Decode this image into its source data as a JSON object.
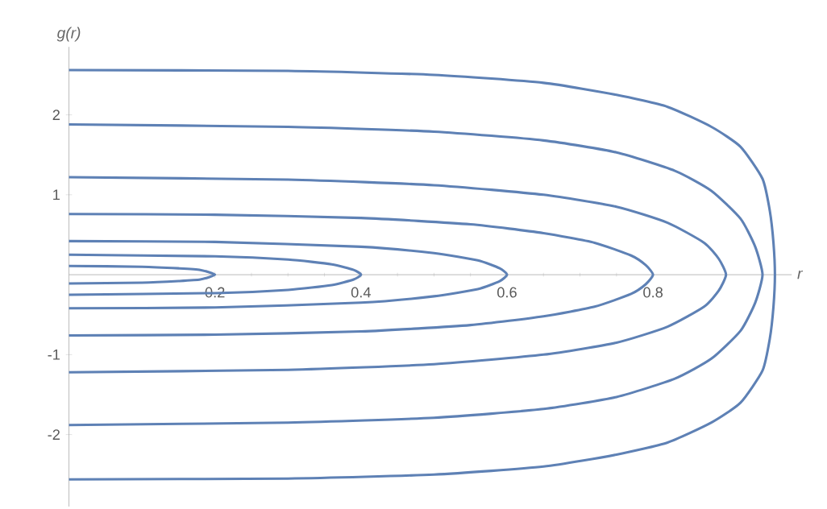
{
  "chart_data": {
    "type": "line",
    "xlabel": "r",
    "ylabel": "g(r)",
    "xlim": [
      0,
      0.99
    ],
    "ylim": [
      -2.9,
      2.85
    ],
    "xticks": [
      0.2,
      0.4,
      0.6,
      0.8
    ],
    "yticks": [
      -2,
      -1,
      1,
      2
    ],
    "series": [
      {
        "color": "#5e81b5",
        "x": [
          0,
          0.1,
          0.15,
          0.18,
          0.2,
          0.18,
          0.15,
          0.1,
          0
        ],
        "values": [
          0.11,
          0.1,
          0.08,
          0.06,
          0,
          -0.06,
          -0.08,
          -0.1,
          -0.11
        ]
      },
      {
        "color": "#5e81b5",
        "x": [
          0,
          0.2,
          0.3,
          0.36,
          0.39,
          0.4,
          0.39,
          0.36,
          0.3,
          0.2,
          0
        ],
        "values": [
          0.25,
          0.23,
          0.19,
          0.13,
          0.06,
          0,
          -0.06,
          -0.13,
          -0.19,
          -0.23,
          -0.25
        ]
      },
      {
        "color": "#5e81b5",
        "x": [
          0,
          0.2,
          0.4,
          0.5,
          0.56,
          0.59,
          0.6,
          0.59,
          0.56,
          0.5,
          0.4,
          0.2,
          0
        ],
        "values": [
          0.42,
          0.41,
          0.35,
          0.27,
          0.18,
          0.08,
          0,
          -0.08,
          -0.18,
          -0.27,
          -0.35,
          -0.41,
          -0.42
        ]
      },
      {
        "color": "#5e81b5",
        "x": [
          0,
          0.2,
          0.4,
          0.55,
          0.65,
          0.72,
          0.77,
          0.79,
          0.8,
          0.79,
          0.77,
          0.72,
          0.65,
          0.55,
          0.4,
          0.2,
          0
        ],
        "values": [
          0.76,
          0.75,
          0.71,
          0.63,
          0.52,
          0.4,
          0.24,
          0.12,
          0,
          -0.12,
          -0.24,
          -0.4,
          -0.52,
          -0.63,
          -0.71,
          -0.75,
          -0.76
        ]
      },
      {
        "color": "#5e81b5",
        "x": [
          0,
          0.3,
          0.5,
          0.65,
          0.75,
          0.82,
          0.87,
          0.89,
          0.9,
          0.89,
          0.87,
          0.82,
          0.75,
          0.65,
          0.5,
          0.3,
          0
        ],
        "values": [
          1.22,
          1.19,
          1.12,
          1.0,
          0.85,
          0.65,
          0.4,
          0.2,
          0,
          -0.2,
          -0.4,
          -0.65,
          -0.85,
          -1.0,
          -1.12,
          -1.19,
          -1.22
        ]
      },
      {
        "color": "#5e81b5",
        "x": [
          0,
          0.3,
          0.5,
          0.65,
          0.75,
          0.83,
          0.88,
          0.92,
          0.94,
          0.95,
          0.94,
          0.92,
          0.88,
          0.83,
          0.75,
          0.65,
          0.5,
          0.3,
          0
        ],
        "values": [
          1.88,
          1.85,
          1.79,
          1.68,
          1.53,
          1.3,
          1.05,
          0.7,
          0.35,
          0,
          -0.35,
          -0.7,
          -1.05,
          -1.3,
          -1.53,
          -1.68,
          -1.79,
          -1.85,
          -1.88
        ]
      },
      {
        "color": "#5e81b5",
        "x": [
          0,
          0.3,
          0.5,
          0.65,
          0.75,
          0.82,
          0.88,
          0.92,
          0.95,
          0.96,
          0.965,
          0.967,
          0.965,
          0.96,
          0.95,
          0.92,
          0.88,
          0.82,
          0.75,
          0.65,
          0.5,
          0.3,
          0
        ],
        "values": [
          2.56,
          2.55,
          2.5,
          2.4,
          2.25,
          2.1,
          1.85,
          1.6,
          1.2,
          0.8,
          0.4,
          0,
          -0.4,
          -0.8,
          -1.2,
          -1.6,
          -1.85,
          -2.1,
          -2.25,
          -2.4,
          -2.5,
          -2.55,
          -2.56
        ]
      }
    ]
  }
}
